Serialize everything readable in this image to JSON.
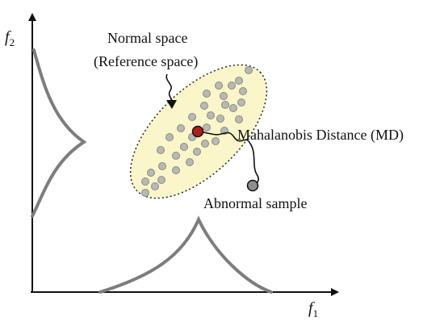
{
  "labels": {
    "normal_space": "Normal space",
    "reference_space": "(Reference space)",
    "md": "Mahalanobis Distance (MD)",
    "abnormal": "Abnormal sample"
  },
  "axes": {
    "x_var": "f",
    "x_sub": "1",
    "y_var": "f",
    "y_sub": "2"
  },
  "colors": {
    "ellipse_fill": "#fbf6c9",
    "sample_fill": "#b9b9b3",
    "sample_stroke": "#8a8a85",
    "center_fill": "#b01c1c",
    "abnormal_fill": "#8e8e8e",
    "curve": "#7d7d7d",
    "axis": "#111111"
  }
}
